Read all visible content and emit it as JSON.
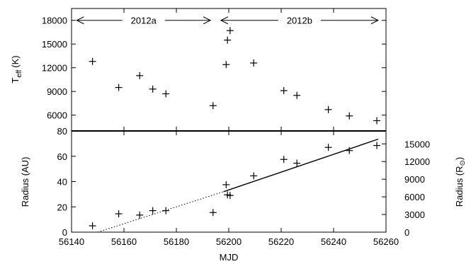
{
  "chart_data": [
    {
      "type": "scatter",
      "ylabel": "T",
      "ylabel_sub": "eff",
      "ylabel_unit": "(K)",
      "xlim": [
        56140,
        56260
      ],
      "ylim": [
        4000,
        19500
      ],
      "yticks": [
        6000,
        9000,
        12000,
        15000,
        18000
      ],
      "tick_labels": [
        "6000",
        "9000",
        "12000",
        "15000",
        "18000"
      ],
      "marker": "plus",
      "points": [
        {
          "x": 56148,
          "y": 12800
        },
        {
          "x": 56158,
          "y": 9500
        },
        {
          "x": 56166,
          "y": 11000
        },
        {
          "x": 56171,
          "y": 9300
        },
        {
          "x": 56176,
          "y": 8700
        },
        {
          "x": 56194,
          "y": 7200
        },
        {
          "x": 56199,
          "y": 12400
        },
        {
          "x": 56199.5,
          "y": 15500
        },
        {
          "x": 56200.5,
          "y": 16700
        },
        {
          "x": 56209.5,
          "y": 12600
        },
        {
          "x": 56221,
          "y": 9100
        },
        {
          "x": 56226,
          "y": 8500
        },
        {
          "x": 56238,
          "y": 6700
        },
        {
          "x": 56246,
          "y": 5900
        },
        {
          "x": 56256.5,
          "y": 5300
        }
      ],
      "annotations": [
        {
          "label": "2012a",
          "x_from": 56142,
          "x_to": 56193,
          "y": 18000
        },
        {
          "label": "2012b",
          "x_from": 56197,
          "x_to": 56257,
          "y": 18000
        }
      ]
    },
    {
      "type": "scatter",
      "xlabel": "MJD",
      "ylabel": "Radius (AU)",
      "ylabel2": "Radius (R",
      "ylabel2_symbol": "⊙",
      "ylabel2_close": ")",
      "xlim": [
        56140,
        56260
      ],
      "ylim": [
        0,
        80
      ],
      "xticks": [
        56140,
        56160,
        56180,
        56200,
        56220,
        56240,
        56260
      ],
      "x_tick_labels": [
        "56140",
        "56160",
        "56180",
        "56200",
        "56220",
        "56240",
        "56260"
      ],
      "yticks": [
        0,
        20,
        40,
        60,
        80
      ],
      "y_tick_labels": [
        "0",
        "20",
        "40",
        "60",
        "80"
      ],
      "y2ticks": [
        0,
        3000,
        6000,
        9000,
        12000,
        15000
      ],
      "y2_tick_labels": [
        "0",
        "3000",
        "6000",
        "9000",
        "12000",
        "15000"
      ],
      "y2lim": [
        0,
        17200
      ],
      "marker": "plus",
      "points": [
        {
          "x": 56148,
          "y": 5
        },
        {
          "x": 56158,
          "y": 14.5
        },
        {
          "x": 56166,
          "y": 13.5
        },
        {
          "x": 56171,
          "y": 17
        },
        {
          "x": 56176,
          "y": 17
        },
        {
          "x": 56194,
          "y": 15.5
        },
        {
          "x": 56199,
          "y": 37.5
        },
        {
          "x": 56199.5,
          "y": 29.5
        },
        {
          "x": 56200.5,
          "y": 29
        },
        {
          "x": 56209.5,
          "y": 44.5
        },
        {
          "x": 56221,
          "y": 57.5
        },
        {
          "x": 56226,
          "y": 54.5
        },
        {
          "x": 56238,
          "y": 67
        },
        {
          "x": 56246,
          "y": 64.5
        },
        {
          "x": 56256.5,
          "y": 68.5
        }
      ],
      "fit_solid": {
        "x": [
          56198,
          56257
        ],
        "y": [
          32,
          73.5
        ]
      },
      "fit_dotted": {
        "x": [
          56150,
          56198
        ],
        "y": [
          0,
          32
        ]
      }
    }
  ]
}
